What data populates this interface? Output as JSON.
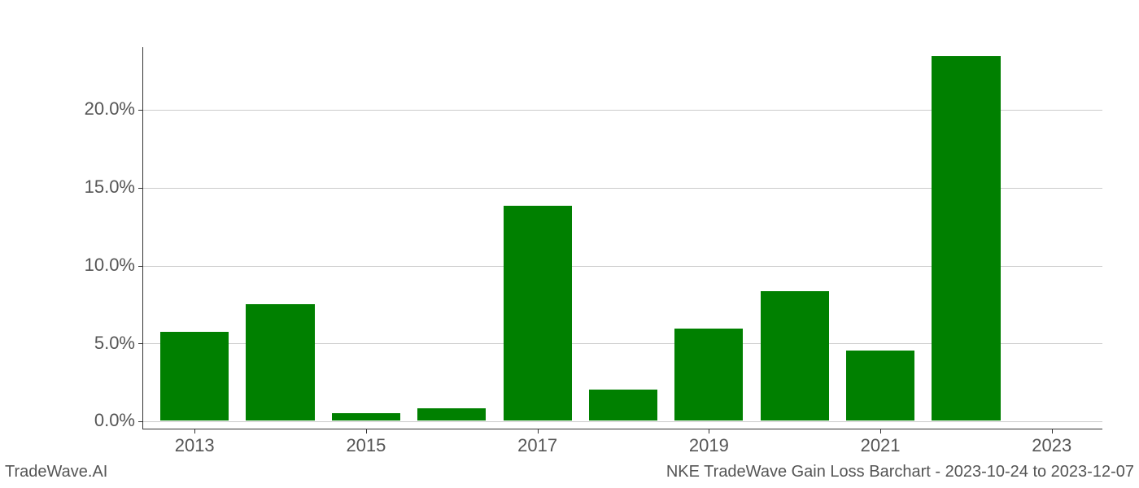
{
  "chart": {
    "type": "bar",
    "background_color": "#ffffff",
    "grid_color": "#cccccc",
    "axis_color": "#333333",
    "bar_color": "#008000",
    "tick_fontsize": 22,
    "tick_color": "#555555",
    "y": {
      "min": -0.5,
      "max": 24.0,
      "ticks": [
        0,
        5,
        10,
        15,
        20
      ],
      "labels": [
        "0.0%",
        "5.0%",
        "10.0%",
        "15.0%",
        "20.0%"
      ]
    },
    "x": {
      "years": [
        2013,
        2014,
        2015,
        2016,
        2017,
        2018,
        2019,
        2020,
        2021,
        2022,
        2023
      ],
      "min": 2012.4,
      "max": 2023.6,
      "tick_years": [
        2013,
        2015,
        2017,
        2019,
        2021,
        2023
      ],
      "tick_labels": [
        "2013",
        "2015",
        "2017",
        "2019",
        "2021",
        "2023"
      ]
    },
    "values": [
      5.7,
      7.5,
      0.5,
      0.8,
      13.8,
      2.0,
      5.9,
      8.3,
      4.5,
      23.4,
      0.0
    ],
    "bar_width_years": 0.8
  },
  "footer": {
    "left": "TradeWave.AI",
    "right": "NKE TradeWave Gain Loss Barchart - 2023-10-24 to 2023-12-07"
  }
}
